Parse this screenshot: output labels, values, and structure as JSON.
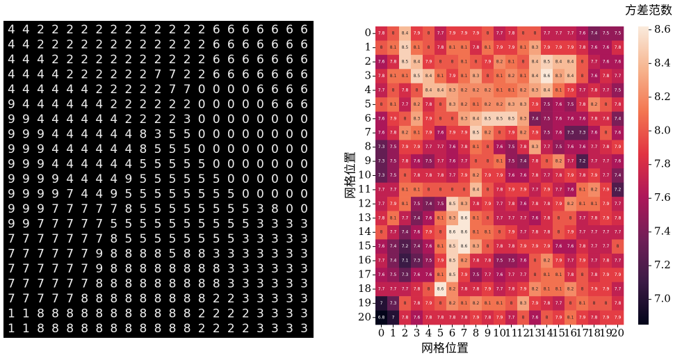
{
  "digit_grid": {
    "rows": [
      "442222222222226666666",
      "442222222222226666666",
      "444222222222226666666",
      "444422222277226666666",
      "444444222227700006666",
      "944444422222200000666",
      "994444442222300000000",
      "999444444835500000000",
      "999444444855500000000",
      "999444444555550000000",
      "999944449555555000000",
      "999974495555555500000",
      "999777778555555553800",
      "997777755555555553333",
      "777777785555555533333",
      "777777988885883333333",
      "777777988888888333333",
      "777777888888888333333",
      "777778888888882233333",
      "118888888888822223333",
      "118888888888822223333"
    ]
  },
  "chart_data": {
    "type": "heatmap",
    "xlabel": "网格位置",
    "ylabel": "网格位置",
    "colorbar_label": "方差范数",
    "x": [
      0,
      1,
      2,
      3,
      4,
      5,
      6,
      7,
      8,
      9,
      10,
      11,
      12,
      13,
      14,
      15,
      16,
      17,
      18,
      19,
      20
    ],
    "y": [
      0,
      1,
      2,
      3,
      4,
      5,
      6,
      7,
      8,
      9,
      10,
      11,
      12,
      13,
      14,
      15,
      16,
      17,
      18,
      19,
      20
    ],
    "values": [
      [
        7.8,
        8,
        8.4,
        7.9,
        8,
        7.7,
        7.9,
        7.9,
        7.9,
        8,
        7.7,
        7.8,
        8,
        8,
        7.7,
        7.7,
        7.7,
        7.6,
        7.4,
        7.5,
        7.5
      ],
      [
        8,
        8.1,
        8.5,
        8.1,
        8,
        7.8,
        8.1,
        8.1,
        7.8,
        8.1,
        7.9,
        7.9,
        8.1,
        8.3,
        7.9,
        7.9,
        7.9,
        7.8,
        7.6,
        7.6,
        7.8
      ],
      [
        7.6,
        7.8,
        8.5,
        8.4,
        7.9,
        8,
        8,
        8.1,
        8,
        7.9,
        8.2,
        8.1,
        8,
        8.4,
        8.5,
        8.4,
        8.4,
        8,
        7.7,
        7.6,
        7.6
      ],
      [
        7.8,
        8.1,
        8.1,
        8.5,
        8.4,
        8.1,
        7.9,
        8.1,
        8.3,
        8,
        8.1,
        8.2,
        8.1,
        8.4,
        8.6,
        8.3,
        8.4,
        8,
        7.6,
        7.8,
        7.7
      ],
      [
        7.7,
        8,
        7.8,
        8,
        8.4,
        8.4,
        8.3,
        8.2,
        8.2,
        8.2,
        8.1,
        8.1,
        8.2,
        8.3,
        8.4,
        8.1,
        7.9,
        7.7,
        7.8,
        7.7,
        7.5
      ],
      [
        8,
        8.1,
        7.7,
        8.2,
        7.8,
        8,
        8.3,
        8.2,
        8.1,
        8.2,
        8.2,
        8.3,
        8.3,
        7.9,
        7.5,
        7.6,
        7.5,
        7.8,
        8.2,
        8,
        7.8
      ],
      [
        7.6,
        7.9,
        8,
        8.3,
        7.9,
        8,
        8,
        8.3,
        8.4,
        8.5,
        8.5,
        8.5,
        8.3,
        7.4,
        7.5,
        7.6,
        7.6,
        7.6,
        7.8,
        7.8,
        7.4
      ],
      [
        7.6,
        7.8,
        8.2,
        8.1,
        7.9,
        7.6,
        7.9,
        7.9,
        8.5,
        8.2,
        8,
        7.9,
        8.2,
        7.9,
        7.5,
        7.6,
        7.3,
        7.3,
        7.6,
        8,
        7.6
      ],
      [
        7.3,
        7.5,
        7.9,
        7.9,
        7.7,
        7.7,
        7.6,
        7.8,
        8.1,
        8,
        7.6,
        7.5,
        7.8,
        8.3,
        7.7,
        7.5,
        7.6,
        7.6,
        7.7,
        7.8,
        7.9
      ],
      [
        7.3,
        7.5,
        7.8,
        7.6,
        7.5,
        7.7,
        7.6,
        7.7,
        8,
        8,
        8.1,
        7.5,
        7.4,
        7.8,
        8,
        8.2,
        7.7,
        7.2,
        7.7,
        7.7,
        7.6
      ],
      [
        7.3,
        7.5,
        8,
        7.8,
        7.8,
        7.8,
        7.7,
        7.9,
        8.2,
        7.9,
        7.9,
        7.6,
        7.6,
        7.8,
        7.7,
        7.8,
        7.9,
        7.8,
        7.9,
        7.7,
        7.4
      ],
      [
        7.7,
        7.7,
        8.1,
        8.1,
        8,
        8,
        8,
        8,
        8.4,
        8,
        7.8,
        7.9,
        7.9,
        7.7,
        7.9,
        7.7,
        7.6,
        8.1,
        8.2,
        7.9,
        7.2
      ],
      [
        7.7,
        7.9,
        8.1,
        7.5,
        7.4,
        7.5,
        8.5,
        8.3,
        7.8,
        7.9,
        7.7,
        7.8,
        7.6,
        7.8,
        7.8,
        7.9,
        8.2,
        8.1,
        8.1,
        7.9,
        7.7
      ],
      [
        7.8,
        8.1,
        7.7,
        7.4,
        7.6,
        8.1,
        8.3,
        8.6,
        8.1,
        8,
        7.7,
        7.7,
        7.7,
        7.6,
        7.8,
        8,
        8,
        7.7,
        7.8,
        7.9,
        7.8
      ],
      [
        8,
        7.7,
        7.4,
        7.6,
        7.9,
        8,
        8.6,
        8.6,
        8.1,
        8.1,
        8,
        7.9,
        7.7,
        7.8,
        7.8,
        8,
        7.9,
        7.7,
        7.7,
        7.7,
        7.7
      ],
      [
        7.6,
        7.4,
        7.2,
        7.4,
        7.6,
        8.1,
        8.5,
        8.6,
        8.3,
        8,
        7.8,
        7.8,
        7.9,
        7.9,
        7.9,
        7.6,
        7.6,
        7.8,
        7.7,
        7.7,
        8
      ],
      [
        7.7,
        7.4,
        7.1,
        7.3,
        7.5,
        7.9,
        8.5,
        8.2,
        7.8,
        7.8,
        7.5,
        7.5,
        7.6,
        8,
        8.2,
        7.9,
        7.7,
        7.9,
        7.7,
        7.8,
        7.7
      ],
      [
        7.6,
        7.5,
        7.3,
        7.6,
        7.6,
        8.1,
        8.5,
        7.9,
        7.5,
        7.7,
        7.6,
        7.7,
        7.7,
        8,
        8.1,
        8.1,
        7.8,
        8,
        7.8,
        7.9,
        7.9
      ],
      [
        7.7,
        7.7,
        7.7,
        7.8,
        8,
        8.6,
        8.2,
        7.8,
        7.8,
        7.9,
        7.7,
        7.8,
        7.9,
        8.2,
        8.1,
        8.1,
        8.2,
        8,
        7.9,
        7.9,
        7.7
      ],
      [
        7,
        7.3,
        8,
        7.8,
        7.9,
        8,
        8.2,
        8.1,
        8.2,
        8.1,
        8.1,
        8,
        8.3,
        7.9,
        7.8,
        7.7,
        8,
        8.1,
        8,
        8,
        7.8
      ],
      [
        6.8,
        7,
        7.8,
        7.6,
        7.8,
        7.8,
        7.8,
        7.8,
        7.9,
        7.8,
        7.9,
        7.7,
        8,
        7.6,
        8,
        7.9,
        8.1,
        7.9,
        7.8,
        7.9,
        7.9
      ]
    ],
    "vlim": [
      6.85,
      8.62
    ],
    "colorbar_ticks": [
      {
        "value": 7.0,
        "label": "7.0"
      },
      7.2,
      7.4,
      7.6,
      {
        "value": 8.0,
        "label": "8.0"
      },
      8.2,
      8.4,
      8.6,
      7.8
    ],
    "colormap": [
      "#03051a",
      "#3b1a45",
      "#701f57",
      "#ad1759",
      "#e13342",
      "#f37651",
      "#f6b48e",
      "#faebdd"
    ]
  }
}
